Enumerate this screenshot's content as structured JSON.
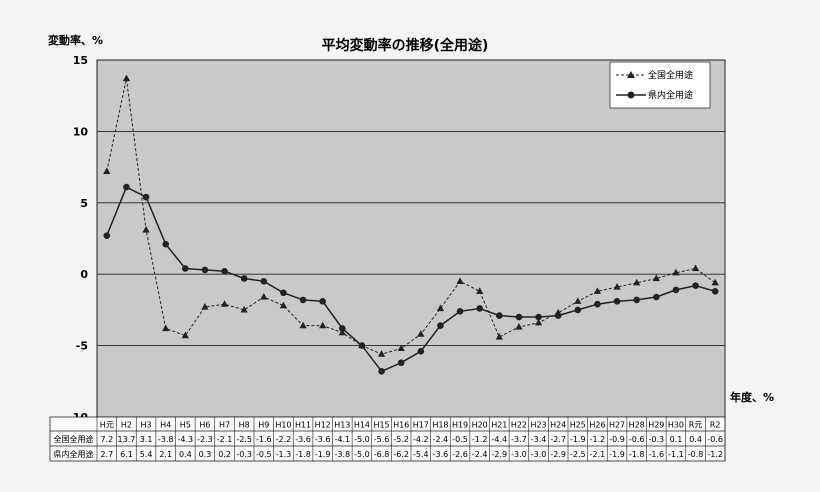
{
  "chart_data": {
    "type": "line",
    "title": "平均変動率の推移(全用途)",
    "ylabel": "変動率、%",
    "xlabel": "年度、%",
    "ylim": [
      -10,
      15
    ],
    "yticks": [
      15,
      10,
      5,
      0,
      -5,
      -10
    ],
    "grid": true,
    "legend_position": "top-right",
    "categories": [
      "H元",
      "H2",
      "H3",
      "H4",
      "H5",
      "H6",
      "H7",
      "H8",
      "H9",
      "H10",
      "H11",
      "H12",
      "H13",
      "H14",
      "H15",
      "H16",
      "H17",
      "H18",
      "H19",
      "H20",
      "H21",
      "H22",
      "H23",
      "H24",
      "H25",
      "H26",
      "H27",
      "H28",
      "H29",
      "H30",
      "R元",
      "R2"
    ],
    "series": [
      {
        "name": "全国全用途",
        "marker": "triangle",
        "line": "dashed",
        "values": [
          7.2,
          13.7,
          3.1,
          -3.8,
          -4.3,
          -2.3,
          -2.1,
          -2.5,
          -1.6,
          -2.2,
          -3.6,
          -3.6,
          -4.1,
          -5.0,
          -5.6,
          -5.2,
          -4.2,
          -2.4,
          -0.5,
          -1.2,
          -4.4,
          -3.7,
          -3.4,
          -2.7,
          -1.9,
          -1.2,
          -0.9,
          -0.6,
          -0.3,
          0.1,
          0.4,
          -0.6
        ],
        "labels": [
          "7.2",
          "13.7",
          "3.1",
          "-3.8",
          "-4.3",
          "-2.3",
          "-2.1",
          "-2.5",
          "-1.6",
          "-2.2",
          "-3.6",
          "-3.6",
          "-4.1",
          "-5.0",
          "-5.6",
          "-5.2",
          "-4.2",
          "-2.4",
          "-0.5",
          "-1.2",
          "-4.4",
          "-3.7",
          "-3.4",
          "-2.7",
          "-1.9",
          "-1.2",
          "-0.9",
          "-0.6",
          "-0.3",
          "0.1",
          "0.4",
          "-0.6"
        ]
      },
      {
        "name": "県内全用途",
        "marker": "circle",
        "line": "solid",
        "values": [
          2.7,
          6.1,
          5.4,
          2.1,
          0.4,
          0.3,
          0.2,
          -0.3,
          -0.5,
          -1.3,
          -1.8,
          -1.9,
          -3.8,
          -5.0,
          -6.8,
          -6.2,
          -5.4,
          -3.6,
          -2.6,
          -2.4,
          -2.9,
          -3.0,
          -3.0,
          -2.9,
          -2.5,
          -2.1,
          -1.9,
          -1.8,
          -1.6,
          -1.1,
          -0.8,
          -1.2
        ],
        "labels": [
          "2.7",
          "6.1",
          "5.4",
          "2.1",
          "0.4",
          "0.3",
          "0.2",
          "-0.3",
          "-0.5",
          "-1.3",
          "-1.8",
          "-1.9",
          "-3.8",
          "-5.0",
          "-6.8",
          "-6.2",
          "-5.4",
          "-3.6",
          "-2.6",
          "-2.4",
          "-2.9",
          "-3.0",
          "-3.0",
          "-2.9",
          "-2.5",
          "-2.1",
          "-1.9",
          "-1.8",
          "-1.6",
          "-1.1",
          "-0.8",
          "-1.2"
        ]
      }
    ]
  }
}
